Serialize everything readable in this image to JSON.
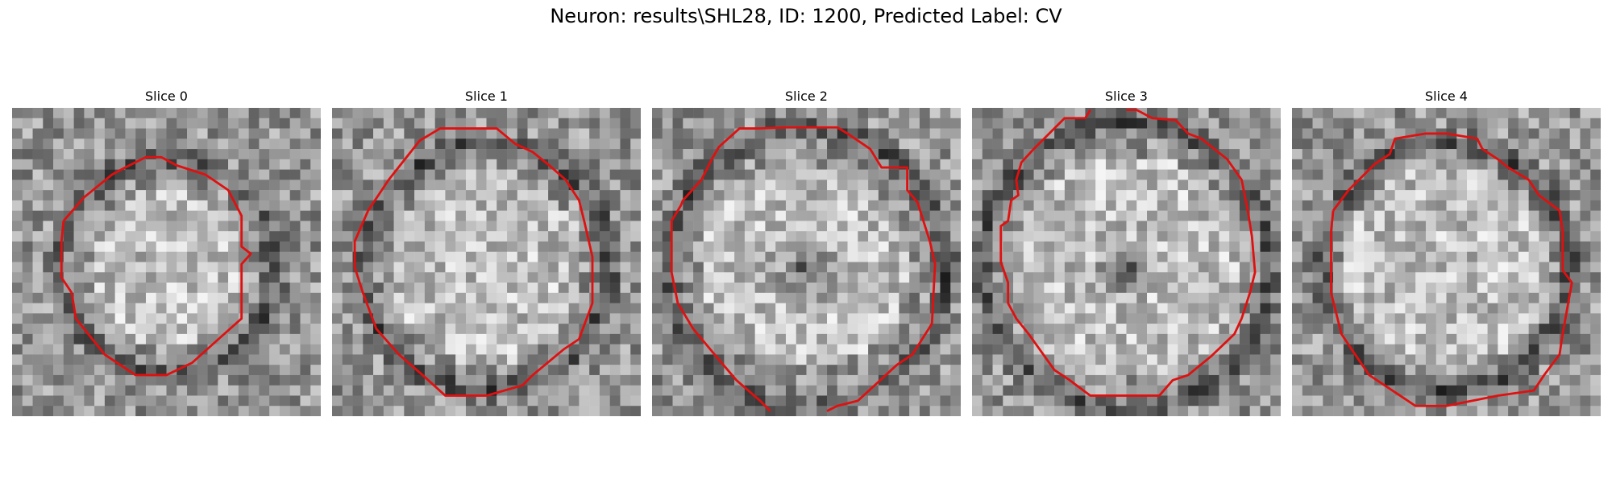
{
  "figure": {
    "title": "Neuron: results\\SHL28, ID: 1200, Predicted Label: CV"
  },
  "panels": [
    {
      "title": "Slice 0"
    },
    {
      "title": "Slice 1"
    },
    {
      "title": "Slice 2"
    },
    {
      "title": "Slice 3"
    },
    {
      "title": "Slice 4"
    }
  ],
  "colors": {
    "contour": "#e01010",
    "background": "#ffffff"
  }
}
